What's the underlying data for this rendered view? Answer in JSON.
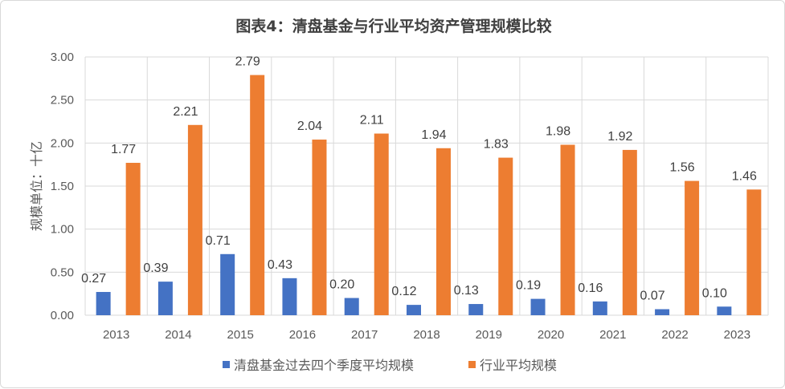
{
  "chart_data": {
    "type": "bar",
    "title": "图表4：清盘基金与行业平均资产管理规模比较",
    "ylabel": "规模单位：十亿",
    "xlabel": "",
    "categories": [
      "2013",
      "2014",
      "2015",
      "2016",
      "2017",
      "2018",
      "2019",
      "2020",
      "2021",
      "2022",
      "2023"
    ],
    "ylim": [
      0,
      3.0
    ],
    "yticks": [
      "0.00",
      "0.50",
      "1.00",
      "1.50",
      "2.00",
      "2.50",
      "3.00"
    ],
    "grid": true,
    "legend_position": "bottom",
    "series": [
      {
        "name": "清盘基金过去四个季度平均规模",
        "color": "#4472c4",
        "values": [
          0.27,
          0.39,
          0.71,
          0.43,
          0.2,
          0.12,
          0.13,
          0.19,
          0.16,
          0.07,
          0.1
        ],
        "labels": [
          "0.27",
          "0.39",
          "0.71",
          "0.43",
          "0.20",
          "0.12",
          "0.13",
          "0.19",
          "0.16",
          "0.07",
          "0.10"
        ]
      },
      {
        "name": "行业平均规模",
        "color": "#ed7d31",
        "values": [
          1.77,
          2.21,
          2.79,
          2.04,
          2.11,
          1.94,
          1.83,
          1.98,
          1.92,
          1.56,
          1.46
        ],
        "labels": [
          "1.77",
          "2.21",
          "2.79",
          "2.04",
          "2.11",
          "1.94",
          "1.83",
          "1.98",
          "1.92",
          "1.56",
          "1.46"
        ]
      }
    ]
  }
}
